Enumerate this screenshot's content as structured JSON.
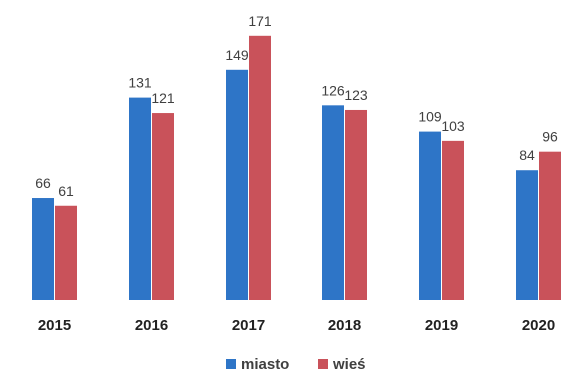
{
  "chart_data": {
    "type": "bar",
    "categories": [
      "2015",
      "2016",
      "2017",
      "2018",
      "2019",
      "2020"
    ],
    "series": [
      {
        "name": "miasto",
        "values": [
          66,
          131,
          149,
          126,
          109,
          84
        ],
        "color": "#2E75C7"
      },
      {
        "name": "wieś",
        "values": [
          61,
          121,
          171,
          123,
          103,
          96
        ],
        "color": "#C9525A"
      }
    ],
    "ylim": [
      0,
      190
    ],
    "grid": false,
    "legend": "bottom-center",
    "title": "",
    "xlabel": "",
    "ylabel": ""
  }
}
